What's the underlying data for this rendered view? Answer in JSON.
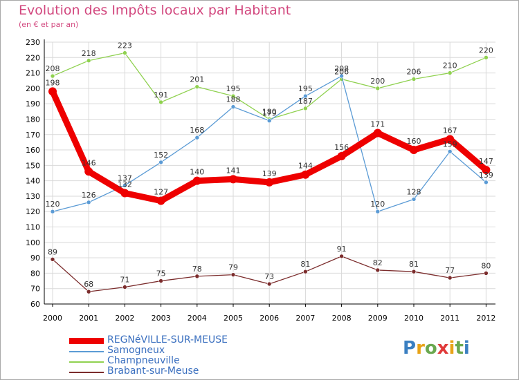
{
  "header": {
    "title": "Evolution des Impôts locaux par Habitant",
    "subtitle": "(en € et par an)"
  },
  "logo": {
    "text": "Proxiti",
    "letter_colors": [
      "#3a7fc1",
      "#e8a317",
      "#6aa84f",
      "#e03a3a",
      "#e8a317",
      "#6aa84f",
      "#3a7fc1"
    ]
  },
  "colors": {
    "background": "#ffffff",
    "grid": "#d9d9d9",
    "axis": "#000000",
    "title": "#d2477e"
  },
  "chart_data": {
    "type": "line",
    "title": "Evolution des Impôts locaux par Habitant",
    "subtitle": "(en € et par an)",
    "xlabel": "",
    "ylabel": "",
    "x": [
      2000,
      2001,
      2002,
      2003,
      2004,
      2005,
      2006,
      2007,
      2008,
      2009,
      2010,
      2011,
      2012
    ],
    "ylim": [
      60,
      230
    ],
    "yticks": [
      60,
      70,
      80,
      90,
      100,
      110,
      120,
      130,
      140,
      150,
      160,
      170,
      180,
      190,
      200,
      210,
      220,
      230
    ],
    "grid": true,
    "legend_position": "bottom-left",
    "series": [
      {
        "name": "REGNéVILLE-SUR-MEUSE",
        "color": "#ee0000",
        "values": [
          198,
          146,
          132,
          127,
          140,
          141,
          139,
          144,
          156,
          171,
          160,
          167,
          147
        ],
        "labels": [
          "198",
          "146",
          "132",
          "127",
          "140",
          "141",
          "139",
          "144",
          "156",
          "171",
          "160",
          "167",
          "147"
        ]
      },
      {
        "name": "Samogneux",
        "color": "#5b9bd5",
        "values": [
          120,
          126,
          137,
          152,
          168,
          188,
          179,
          195,
          208,
          120,
          128,
          159,
          139
        ],
        "labels": [
          "120",
          "126",
          "137",
          "152",
          "168",
          "188",
          "179",
          "195",
          "208",
          "120",
          "128",
          "159",
          "139"
        ]
      },
      {
        "name": "Champneuville",
        "color": "#8fd14f",
        "values": [
          208,
          218,
          223,
          191,
          201,
          195,
          180,
          187,
          206,
          200,
          206,
          210,
          220
        ],
        "labels": [
          "208",
          "218",
          "223",
          "191",
          "201",
          "195",
          "180",
          "187",
          "206",
          "200",
          "206",
          "210",
          "220"
        ]
      },
      {
        "name": "Brabant-sur-Meuse",
        "color": "#7b2c2c",
        "values": [
          89,
          68,
          71,
          75,
          78,
          79,
          73,
          81,
          91,
          82,
          81,
          77,
          80
        ],
        "labels": [
          "89",
          "68",
          "71",
          "75",
          "78",
          "79",
          "73",
          "81",
          "91",
          "82",
          "81",
          "77",
          "80"
        ]
      }
    ]
  }
}
